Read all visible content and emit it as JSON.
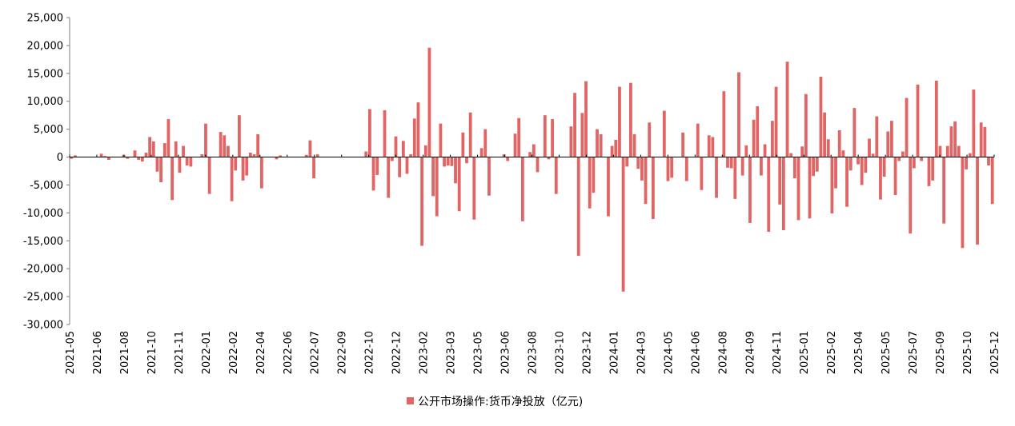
{
  "chart_data": {
    "type": "bar",
    "title": "",
    "xlabel": "",
    "ylabel": "",
    "ylim": [
      -30000,
      25000
    ],
    "yticks": [
      25000,
      20000,
      15000,
      10000,
      5000,
      0,
      -5000,
      -10000,
      -15000,
      -20000,
      -25000,
      -30000
    ],
    "ytick_labels": [
      "25,000",
      "20,000",
      "15,000",
      "10,000",
      "5,000",
      "0",
      "-5,000",
      "-10,000",
      "-15,000",
      "-20,000",
      "-25,000",
      "-30,000"
    ],
    "xtick_labels": [
      "2021-05",
      "2021-06",
      "2021-08",
      "2021-10",
      "2021-11",
      "2022-01",
      "2022-02",
      "2022-04",
      "2022-06",
      "2022-07",
      "2022-09",
      "2022-10",
      "2022-12",
      "2023-02",
      "2023-03",
      "2023-05",
      "2023-06",
      "2023-08",
      "2023-10",
      "2023-12",
      "2024-01",
      "2024-03",
      "2024-05",
      "2024-06",
      "2024-08",
      "2024-09",
      "2024-11",
      "2025-01",
      "2025-02",
      "2025-04",
      "2025-05",
      "2025-07",
      "2025-09",
      "2025-10",
      "2025-12"
    ],
    "legend": "公开市场操作:货币净投放（亿元)",
    "legend_position": "bottom",
    "grid": false,
    "colors": {
      "bar": "#E06666",
      "axis": "#7F7F7F"
    },
    "values": [
      -300,
      300,
      0,
      0,
      0,
      0,
      0,
      0,
      600,
      200,
      -500,
      0,
      0,
      0,
      400,
      -300,
      0,
      1200,
      -500,
      -800,
      800,
      3600,
      2800,
      -2600,
      -4500,
      2500,
      6800,
      -7700,
      2800,
      -2800,
      2000,
      -1500,
      -1700,
      0,
      0,
      500,
      6000,
      -6600,
      0,
      0,
      4500,
      3900,
      2000,
      -7900,
      -2400,
      7500,
      -4200,
      -3300,
      800,
      500,
      4100,
      -5600,
      0,
      0,
      0,
      -400,
      300,
      0,
      0,
      0,
      0,
      0,
      0,
      400,
      3000,
      -3800,
      500,
      0,
      0,
      0,
      0,
      0,
      0,
      0,
      0,
      0,
      0,
      0,
      0,
      1000,
      8600,
      -6000,
      -3200,
      0,
      8400,
      -7300,
      -700,
      3700,
      -3600,
      2900,
      -3000,
      500,
      6900,
      9800,
      -15900,
      2100,
      19600,
      -7000,
      -10600,
      6000,
      -1700,
      -1500,
      -1600,
      -4700,
      -9700,
      4400,
      -1100,
      8000,
      -11200,
      0,
      1600,
      5000,
      -6900,
      0,
      0,
      0,
      500,
      -700,
      0,
      4200,
      7000,
      -11500,
      0,
      900,
      2300,
      -2700,
      0,
      7500,
      -400,
      6800,
      -6600,
      0,
      0,
      0,
      5500,
      11500,
      -17700,
      7900,
      13600,
      -9200,
      -6400,
      5000,
      4100,
      0,
      -10600,
      2000,
      3100,
      12600,
      -24100,
      -1700,
      13300,
      4100,
      -2100,
      -4200,
      -8400,
      6200,
      -11100,
      0,
      0,
      8300,
      -4300,
      -3700,
      0,
      0,
      4400,
      -4300,
      0,
      0,
      6000,
      -5900,
      -100,
      3900,
      3600,
      -7300,
      0,
      11800,
      -1900,
      -2000,
      -7500,
      15200,
      -3300,
      2100,
      -11800,
      6700,
      9100,
      -3300,
      2300,
      -13400,
      6500,
      12600,
      -8500,
      -13100,
      17100,
      700,
      -3800,
      -11300,
      1900,
      11300,
      -11000,
      -3400,
      -2600,
      14400,
      8000,
      3200,
      -10100,
      -5600,
      4800,
      1200,
      -8900,
      -2400,
      8800,
      -1300,
      -5000,
      -2800,
      3300,
      600,
      7300,
      -7600,
      -3500,
      4600,
      6500,
      -6800,
      -700,
      1000,
      10600,
      -13700,
      -2000,
      13000,
      -700,
      0,
      -5200,
      -4200,
      13700,
      2000,
      -11900,
      2000,
      5500,
      6400,
      2000,
      -16300,
      -2200,
      700,
      12100,
      -15700,
      6200,
      5400,
      -1500,
      -8400
    ]
  }
}
